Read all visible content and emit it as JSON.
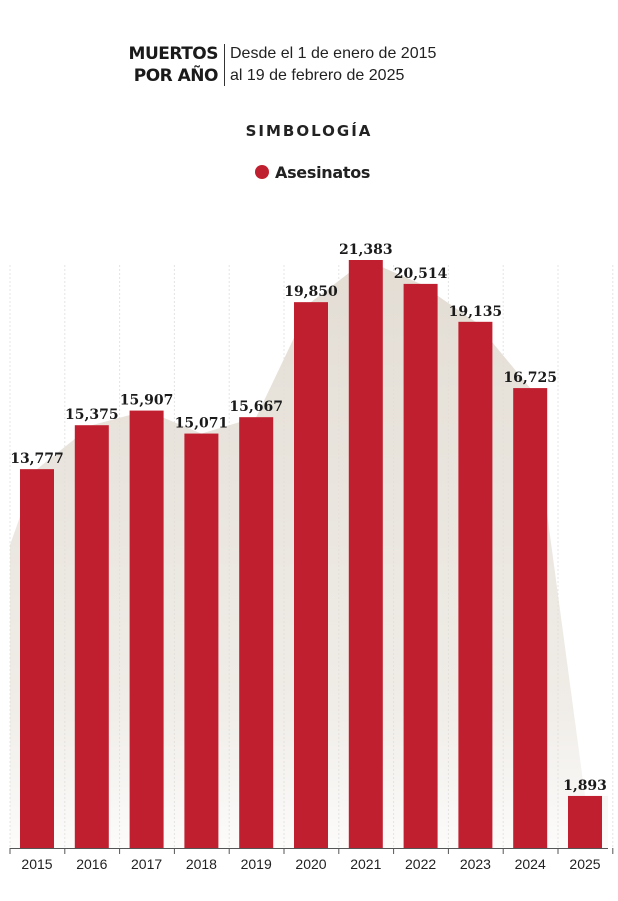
{
  "header": {
    "title_line1": "MUERTOS",
    "title_line2": "POR AÑO",
    "subtitle_line1": "Desde el 1 de enero de 2015",
    "subtitle_line2": "al 19 de febrero de 2025"
  },
  "legend": {
    "title": "SIMBOLOGÍA",
    "item_label": "Asesinatos",
    "item_color": "#c01f2f"
  },
  "colors": {
    "bar": "#c01f2f",
    "area": "#e3ddd4",
    "grid": "#e4e4e4",
    "axis": "#555555"
  },
  "chart_data": {
    "type": "bar",
    "title": "",
    "xlabel": "",
    "ylabel": "",
    "categories": [
      "2015",
      "2016",
      "2017",
      "2018",
      "2019",
      "2020",
      "2021",
      "2022",
      "2023",
      "2024",
      "2025"
    ],
    "series": [
      {
        "name": "Asesinatos",
        "values": [
          13777,
          15375,
          15907,
          15071,
          15667,
          19850,
          21383,
          20514,
          19135,
          16725,
          1893
        ]
      }
    ],
    "value_labels": [
      "13,777",
      "15,375",
      "15,907",
      "15,071",
      "15,667",
      "19,850",
      "21,383",
      "20,514",
      "19,135",
      "16,725",
      "1,893"
    ],
    "ylim": [
      0,
      21383
    ],
    "grid": true,
    "background_area": true
  }
}
